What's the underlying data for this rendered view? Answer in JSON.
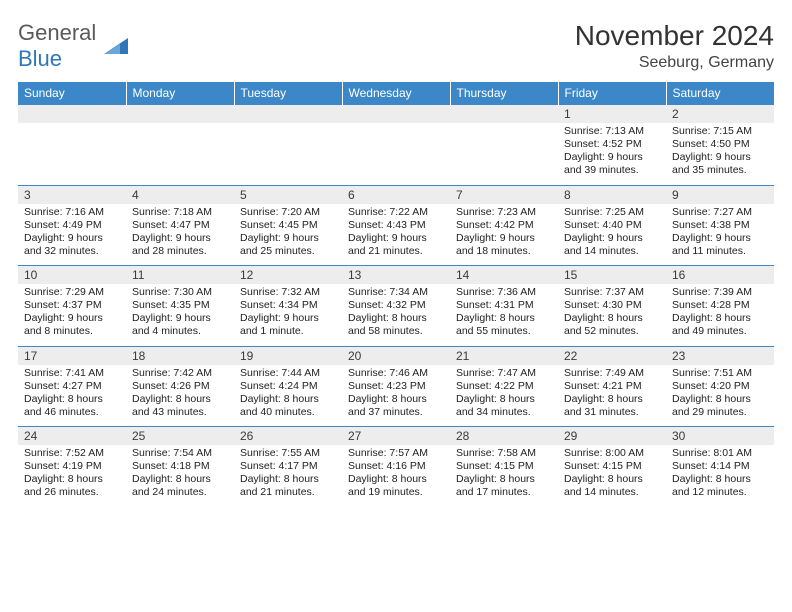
{
  "brand": {
    "name1": "General",
    "name2": "Blue"
  },
  "title": "November 2024",
  "location": "Seeburg, Germany",
  "header_color": "#3b87c8",
  "daynum_bg": "#ededed",
  "rule_color": "#3b87c8",
  "text_color": "#222222",
  "fontsize_title": 28,
  "fontsize_location": 16,
  "fontsize_header": 12,
  "fontsize_cell": 10.5,
  "days": [
    "Sunday",
    "Monday",
    "Tuesday",
    "Wednesday",
    "Thursday",
    "Friday",
    "Saturday"
  ],
  "weeks": [
    [
      null,
      null,
      null,
      null,
      null,
      {
        "n": "1",
        "sr": "Sunrise: 7:13 AM",
        "ss": "Sunset: 4:52 PM",
        "d1": "Daylight: 9 hours",
        "d2": "and 39 minutes."
      },
      {
        "n": "2",
        "sr": "Sunrise: 7:15 AM",
        "ss": "Sunset: 4:50 PM",
        "d1": "Daylight: 9 hours",
        "d2": "and 35 minutes."
      }
    ],
    [
      {
        "n": "3",
        "sr": "Sunrise: 7:16 AM",
        "ss": "Sunset: 4:49 PM",
        "d1": "Daylight: 9 hours",
        "d2": "and 32 minutes."
      },
      {
        "n": "4",
        "sr": "Sunrise: 7:18 AM",
        "ss": "Sunset: 4:47 PM",
        "d1": "Daylight: 9 hours",
        "d2": "and 28 minutes."
      },
      {
        "n": "5",
        "sr": "Sunrise: 7:20 AM",
        "ss": "Sunset: 4:45 PM",
        "d1": "Daylight: 9 hours",
        "d2": "and 25 minutes."
      },
      {
        "n": "6",
        "sr": "Sunrise: 7:22 AM",
        "ss": "Sunset: 4:43 PM",
        "d1": "Daylight: 9 hours",
        "d2": "and 21 minutes."
      },
      {
        "n": "7",
        "sr": "Sunrise: 7:23 AM",
        "ss": "Sunset: 4:42 PM",
        "d1": "Daylight: 9 hours",
        "d2": "and 18 minutes."
      },
      {
        "n": "8",
        "sr": "Sunrise: 7:25 AM",
        "ss": "Sunset: 4:40 PM",
        "d1": "Daylight: 9 hours",
        "d2": "and 14 minutes."
      },
      {
        "n": "9",
        "sr": "Sunrise: 7:27 AM",
        "ss": "Sunset: 4:38 PM",
        "d1": "Daylight: 9 hours",
        "d2": "and 11 minutes."
      }
    ],
    [
      {
        "n": "10",
        "sr": "Sunrise: 7:29 AM",
        "ss": "Sunset: 4:37 PM",
        "d1": "Daylight: 9 hours",
        "d2": "and 8 minutes."
      },
      {
        "n": "11",
        "sr": "Sunrise: 7:30 AM",
        "ss": "Sunset: 4:35 PM",
        "d1": "Daylight: 9 hours",
        "d2": "and 4 minutes."
      },
      {
        "n": "12",
        "sr": "Sunrise: 7:32 AM",
        "ss": "Sunset: 4:34 PM",
        "d1": "Daylight: 9 hours",
        "d2": "and 1 minute."
      },
      {
        "n": "13",
        "sr": "Sunrise: 7:34 AM",
        "ss": "Sunset: 4:32 PM",
        "d1": "Daylight: 8 hours",
        "d2": "and 58 minutes."
      },
      {
        "n": "14",
        "sr": "Sunrise: 7:36 AM",
        "ss": "Sunset: 4:31 PM",
        "d1": "Daylight: 8 hours",
        "d2": "and 55 minutes."
      },
      {
        "n": "15",
        "sr": "Sunrise: 7:37 AM",
        "ss": "Sunset: 4:30 PM",
        "d1": "Daylight: 8 hours",
        "d2": "and 52 minutes."
      },
      {
        "n": "16",
        "sr": "Sunrise: 7:39 AM",
        "ss": "Sunset: 4:28 PM",
        "d1": "Daylight: 8 hours",
        "d2": "and 49 minutes."
      }
    ],
    [
      {
        "n": "17",
        "sr": "Sunrise: 7:41 AM",
        "ss": "Sunset: 4:27 PM",
        "d1": "Daylight: 8 hours",
        "d2": "and 46 minutes."
      },
      {
        "n": "18",
        "sr": "Sunrise: 7:42 AM",
        "ss": "Sunset: 4:26 PM",
        "d1": "Daylight: 8 hours",
        "d2": "and 43 minutes."
      },
      {
        "n": "19",
        "sr": "Sunrise: 7:44 AM",
        "ss": "Sunset: 4:24 PM",
        "d1": "Daylight: 8 hours",
        "d2": "and 40 minutes."
      },
      {
        "n": "20",
        "sr": "Sunrise: 7:46 AM",
        "ss": "Sunset: 4:23 PM",
        "d1": "Daylight: 8 hours",
        "d2": "and 37 minutes."
      },
      {
        "n": "21",
        "sr": "Sunrise: 7:47 AM",
        "ss": "Sunset: 4:22 PM",
        "d1": "Daylight: 8 hours",
        "d2": "and 34 minutes."
      },
      {
        "n": "22",
        "sr": "Sunrise: 7:49 AM",
        "ss": "Sunset: 4:21 PM",
        "d1": "Daylight: 8 hours",
        "d2": "and 31 minutes."
      },
      {
        "n": "23",
        "sr": "Sunrise: 7:51 AM",
        "ss": "Sunset: 4:20 PM",
        "d1": "Daylight: 8 hours",
        "d2": "and 29 minutes."
      }
    ],
    [
      {
        "n": "24",
        "sr": "Sunrise: 7:52 AM",
        "ss": "Sunset: 4:19 PM",
        "d1": "Daylight: 8 hours",
        "d2": "and 26 minutes."
      },
      {
        "n": "25",
        "sr": "Sunrise: 7:54 AM",
        "ss": "Sunset: 4:18 PM",
        "d1": "Daylight: 8 hours",
        "d2": "and 24 minutes."
      },
      {
        "n": "26",
        "sr": "Sunrise: 7:55 AM",
        "ss": "Sunset: 4:17 PM",
        "d1": "Daylight: 8 hours",
        "d2": "and 21 minutes."
      },
      {
        "n": "27",
        "sr": "Sunrise: 7:57 AM",
        "ss": "Sunset: 4:16 PM",
        "d1": "Daylight: 8 hours",
        "d2": "and 19 minutes."
      },
      {
        "n": "28",
        "sr": "Sunrise: 7:58 AM",
        "ss": "Sunset: 4:15 PM",
        "d1": "Daylight: 8 hours",
        "d2": "and 17 minutes."
      },
      {
        "n": "29",
        "sr": "Sunrise: 8:00 AM",
        "ss": "Sunset: 4:15 PM",
        "d1": "Daylight: 8 hours",
        "d2": "and 14 minutes."
      },
      {
        "n": "30",
        "sr": "Sunrise: 8:01 AM",
        "ss": "Sunset: 4:14 PM",
        "d1": "Daylight: 8 hours",
        "d2": "and 12 minutes."
      }
    ]
  ]
}
